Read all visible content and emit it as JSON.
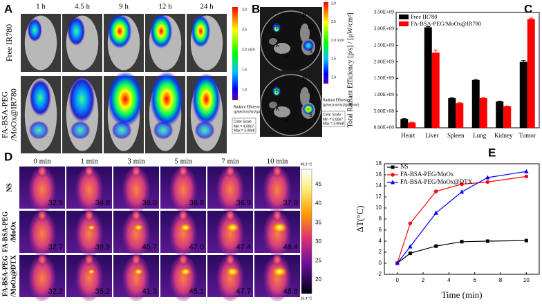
{
  "panel_labels": {
    "a": "A",
    "b": "B",
    "c": "C",
    "d": "D",
    "e": "E"
  },
  "panel_a": {
    "times": [
      "1 h",
      "4.5 h",
      "9 h",
      "12 h",
      "24 h"
    ],
    "rows": [
      [
        "Free IR780"
      ],
      [
        "FA-BSA-PEG",
        "/MoOx@IR780"
      ]
    ],
    "colorbar": {
      "ticks": [
        "3.0",
        "2.5",
        "2.0",
        "1.5",
        "1.0"
      ],
      "unit": "x10⁸",
      "title": "Radiant Efficiency",
      "units": "(p/sec/cm²/sr)/(μW/cm²)",
      "scale": "Color Scale",
      "min": "Min = 4.00e7",
      "max": "Max = 3.00e8"
    }
  },
  "panel_b": {
    "organs": [
      "H",
      "Li",
      "S",
      "Lu",
      "K",
      "T"
    ],
    "colorbar": {
      "ticks": [
        "3.0",
        "2.5",
        "2.0",
        "1.5",
        "1.0"
      ],
      "unit": "x10⁸",
      "title": "Radiant Efficiency",
      "units": "(p/sec/cm²/sr)/(μW/cm²)",
      "scale": "Color Scale",
      "min": "Min = 6.00e7",
      "max": "Max = 3.00e8"
    }
  },
  "panel_d": {
    "times": [
      "0 min",
      "1 min",
      "3 min",
      "5 min",
      "7 min",
      "10 min"
    ],
    "rows": [
      [
        "NS"
      ],
      [
        "FA-BSA-PEG",
        "/MoOx"
      ],
      [
        "FA-BSA-PEG",
        "/MoOx@DTX"
      ]
    ],
    "temperatures": [
      [
        "32.9",
        "34.8",
        "36.0",
        "36.8",
        "36.9",
        "37.0"
      ],
      [
        "32.7",
        "39.9",
        "45.7",
        "47.0",
        "47.4",
        "48.4"
      ],
      [
        "32.2",
        "35.2",
        "41.3",
        "45.1",
        "47.7",
        "48.8"
      ]
    ],
    "colorbar": {
      "max": "49.0 °C",
      "min": "16.4 °C",
      "ticks": [
        "45",
        "40",
        "35",
        "30",
        "25",
        "20"
      ]
    }
  },
  "chart_data": [
    {
      "type": "bar",
      "y_label": "Total Radiant Efficiency [p/s] / [μW/cm²]",
      "categories": [
        "Heart",
        "Liver",
        "Spleen",
        "Lung",
        "Kidney",
        "Tumor"
      ],
      "series": [
        {
          "name": "Free IR780",
          "color": "#000000",
          "values": [
            270000000,
            3050000000,
            900000000,
            1450000000,
            800000000,
            2000000000
          ],
          "errors": [
            10000000,
            20000000,
            10000000,
            20000000,
            10000000,
            40000000
          ]
        },
        {
          "name": "FA-BSA-PEG/MoOx@IR780",
          "color": "#ff0000",
          "values": [
            160000000,
            2280000000,
            750000000,
            900000000,
            650000000,
            3300000000
          ],
          "errors": [
            10000000,
            80000000,
            10000000,
            10000000,
            10000000,
            30000000
          ]
        }
      ],
      "ylim": [
        0,
        3500000000
      ],
      "yticks": [
        {
          "value": 0,
          "label": "0.00E+00"
        },
        {
          "value": 500000000,
          "label": "5.00E+08"
        },
        {
          "value": 1000000000,
          "label": "1.00E+09"
        },
        {
          "value": 1500000000,
          "label": "1.50E+09"
        },
        {
          "value": 2000000000,
          "label": "2.00E+09"
        },
        {
          "value": 2500000000,
          "label": "2.50E+09"
        },
        {
          "value": 3000000000,
          "label": "3.00E+09"
        },
        {
          "value": 3500000000,
          "label": "3.50E+09"
        }
      ]
    },
    {
      "type": "line",
      "x_label": "Time (min)",
      "y_label": "ΔT(°C)",
      "x": [
        0,
        1,
        3,
        5,
        7,
        10
      ],
      "series": [
        {
          "name": "NS",
          "color": "#000000",
          "marker": "square",
          "values": [
            0,
            1.8,
            3.1,
            3.9,
            4.0,
            4.1
          ]
        },
        {
          "name": "FA-BSA-PEG/MoOx",
          "color": "#ff0000",
          "marker": "circle",
          "values": [
            0,
            7.2,
            13.0,
            14.3,
            14.7,
            15.7
          ]
        },
        {
          "name": "FA-BSA-PEG/MoOx@DTX",
          "color": "#0000ff",
          "marker": "triangle",
          "values": [
            0,
            3.0,
            9.1,
            12.9,
            15.5,
            16.6
          ]
        }
      ],
      "xlim": [
        -1,
        11
      ],
      "xticks": [
        0,
        2,
        4,
        6,
        8,
        10
      ],
      "ylim": [
        -2,
        18
      ],
      "yticks": [
        -2,
        0,
        2,
        4,
        6,
        8,
        10,
        12,
        14,
        16,
        18
      ]
    }
  ]
}
